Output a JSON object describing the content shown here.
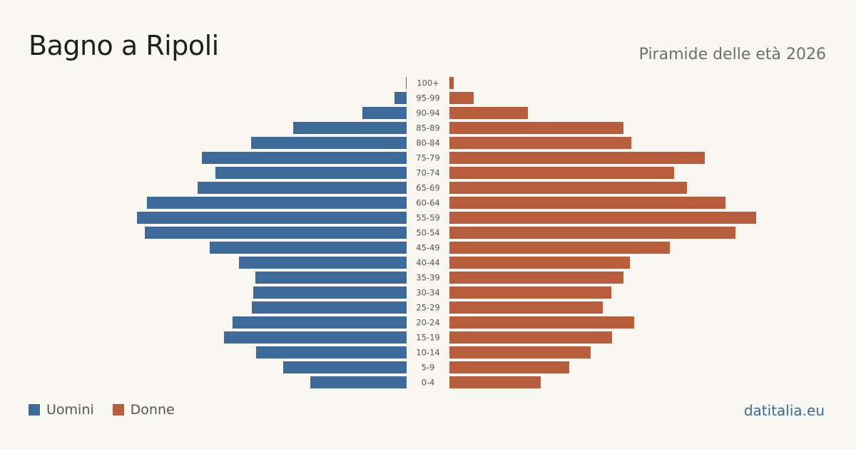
{
  "header": {
    "title": "Bagno a Ripoli",
    "subtitle": "Piramide delle età 2026"
  },
  "legend": {
    "men_label": "Uomini",
    "women_label": "Donne"
  },
  "footer": {
    "brand": "datitalia.eu"
  },
  "colors": {
    "men": "#3c6a9a",
    "women": "#b95e3d"
  },
  "chart_data": {
    "type": "bar",
    "orientation": "horizontal-pyramid",
    "title": "Bagno a Ripoli",
    "subtitle": "Piramide delle età 2026",
    "categories": [
      "100+",
      "95-99",
      "90-94",
      "85-89",
      "80-84",
      "75-79",
      "70-74",
      "65-69",
      "60-64",
      "55-59",
      "50-54",
      "45-49",
      "40-44",
      "35-39",
      "30-34",
      "25-29",
      "20-24",
      "15-19",
      "10-14",
      "5-9",
      "0-4"
    ],
    "series": [
      {
        "name": "Uomini",
        "side": "left",
        "color": "#3c6a9a",
        "values": [
          1,
          17,
          62,
          159,
          218,
          287,
          268,
          293,
          364,
          378,
          367,
          276,
          235,
          212,
          215,
          217,
          244,
          256,
          211,
          173,
          135
        ]
      },
      {
        "name": "Donne",
        "side": "right",
        "color": "#b95e3d",
        "values": [
          6,
          34,
          110,
          244,
          255,
          358,
          315,
          333,
          387,
          430,
          401,
          309,
          253,
          244,
          227,
          215,
          259,
          228,
          198,
          168,
          128
        ]
      }
    ],
    "grid": false,
    "legend_position": "bottom-left"
  }
}
